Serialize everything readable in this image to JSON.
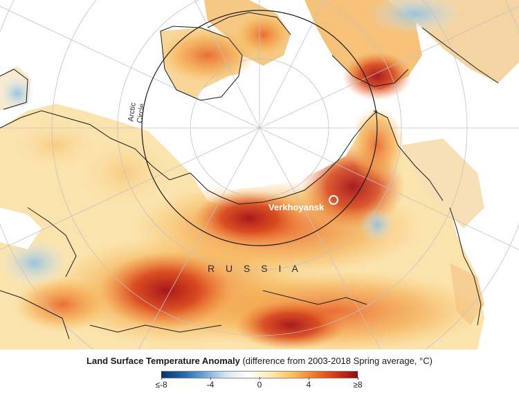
{
  "map": {
    "labels": {
      "arctic_circle_line1": "Arctic",
      "arctic_circle_line2": "Circle",
      "city": "Verkhoyansk",
      "country": "R U S S I A"
    }
  },
  "legend": {
    "title_bold": "Land Surface Temperature Anomaly",
    "title_rest": " (difference from 2003-2018 Spring average, °C)",
    "ticks": [
      {
        "label": "≤-8",
        "value": -8
      },
      {
        "label": "-4",
        "value": -4
      },
      {
        "label": "0",
        "value": 0
      },
      {
        "label": "4",
        "value": 4
      },
      {
        "label": "≥8",
        "value": 8
      }
    ],
    "range": [
      -8,
      8
    ],
    "colors": [
      "#08306b",
      "#2166ac",
      "#6aa8d8",
      "#d8e8f2",
      "#ffffff",
      "#fdeab0",
      "#f8c15a",
      "#ee7a2a",
      "#d33a16",
      "#8a0b14"
    ]
  }
}
